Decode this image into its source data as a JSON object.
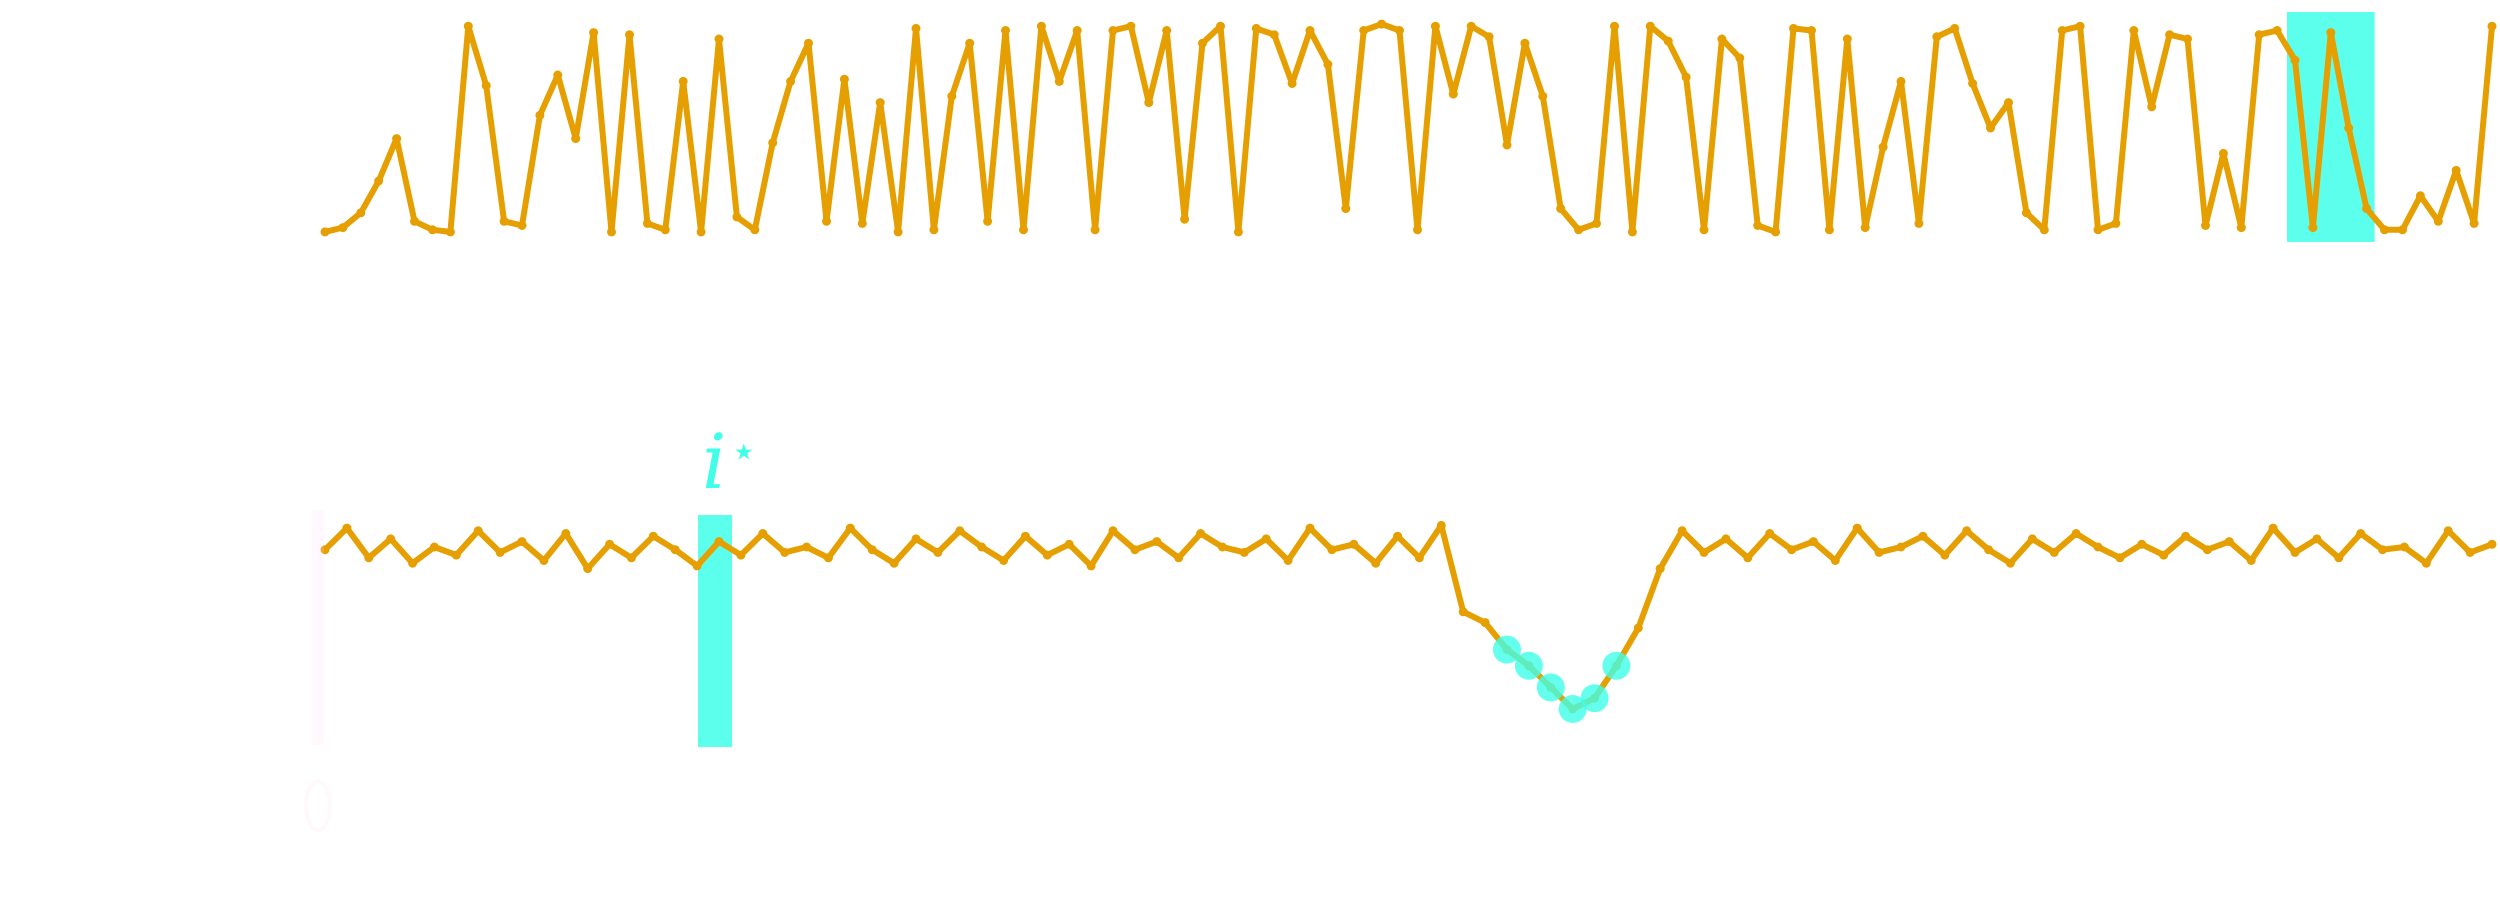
{
  "chart_data": [
    {
      "type": "line",
      "title": "",
      "xlabel": "",
      "ylabel": "",
      "grid": false,
      "legend": "none",
      "x_range": [
        0,
        399
      ],
      "y_range": [
        0,
        1
      ],
      "series": [
        {
          "color": "#E69F00",
          "marker": "point",
          "values": [
            0.01,
            0.03,
            0.1,
            0.25,
            0.45,
            0.06,
            0.02,
            0.01,
            0.98,
            0.7,
            0.06,
            0.04,
            0.56,
            0.75,
            0.45,
            0.95,
            0.01,
            0.94,
            0.05,
            0.02,
            0.72,
            0.01,
            0.92,
            0.08,
            0.02,
            0.43,
            0.72,
            0.9,
            0.06,
            0.73,
            0.05,
            0.62,
            0.01,
            0.97,
            0.02,
            0.65,
            0.9,
            0.06,
            0.96,
            0.02,
            0.98,
            0.72,
            0.96,
            0.02,
            0.96,
            0.98,
            0.62,
            0.96,
            0.07,
            0.9,
            0.98,
            0.01,
            0.97,
            0.94,
            0.71,
            0.96,
            0.8,
            0.12,
            0.96,
            0.99,
            0.96,
            0.02,
            0.98,
            0.66,
            0.98,
            0.93,
            0.42,
            0.9,
            0.65,
            0.12,
            0.02,
            0.05,
            0.98,
            0.01,
            0.98,
            0.91,
            0.74,
            0.02,
            0.92,
            0.83,
            0.04,
            0.01,
            0.97,
            0.96,
            0.02,
            0.92,
            0.03,
            0.41,
            0.72,
            0.05,
            0.93,
            0.97,
            0.71,
            0.5,
            0.62,
            0.1,
            0.02,
            0.96,
            0.98,
            0.02,
            0.05,
            0.96,
            0.6,
            0.94,
            0.92,
            0.04,
            0.38,
            0.03,
            0.94,
            0.96,
            0.82,
            0.03,
            0.95,
            0.5,
            0.12,
            0.02,
            0.02,
            0.18,
            0.06,
            0.3,
            0.05,
            0.98
          ],
          "highlight_band": {
            "from_index": 110,
            "to_index": 114,
            "color": "#3FFFE8"
          }
        }
      ]
    },
    {
      "type": "line",
      "title": "",
      "xlabel": "",
      "ylabel": "",
      "grid": false,
      "legend": "none",
      "x_range": [
        0,
        399
      ],
      "y_range": [
        0,
        1
      ],
      "annotation": "i",
      "annotation_superscript": "⋆",
      "series": [
        {
          "color": "#E69F00",
          "marker": "point",
          "values": [
            0.89,
            0.97,
            0.86,
            0.93,
            0.84,
            0.9,
            0.87,
            0.96,
            0.88,
            0.92,
            0.85,
            0.95,
            0.82,
            0.91,
            0.86,
            0.94,
            0.89,
            0.83,
            0.92,
            0.87,
            0.95,
            0.88,
            0.9,
            0.86,
            0.97,
            0.89,
            0.84,
            0.93,
            0.88,
            0.96,
            0.9,
            0.85,
            0.94,
            0.87,
            0.91,
            0.83,
            0.96,
            0.89,
            0.92,
            0.86,
            0.95,
            0.9,
            0.88,
            0.93,
            0.85,
            0.97,
            0.89,
            0.91,
            0.84,
            0.94,
            0.86,
            0.98,
            0.66,
            0.62,
            0.52,
            0.46,
            0.38,
            0.3,
            0.34,
            0.46,
            0.6,
            0.82,
            0.96,
            0.88,
            0.93,
            0.86,
            0.95,
            0.89,
            0.92,
            0.85,
            0.97,
            0.88,
            0.9,
            0.94,
            0.87,
            0.96,
            0.89,
            0.84,
            0.93,
            0.88,
            0.95,
            0.9,
            0.86,
            0.91,
            0.87,
            0.94,
            0.89,
            0.92,
            0.85,
            0.97,
            0.88,
            0.93,
            0.86,
            0.95,
            0.89,
            0.9,
            0.84,
            0.96,
            0.88,
            0.91
          ],
          "outlier_markers_color": "#3FFFE8"
        }
      ]
    }
  ]
}
